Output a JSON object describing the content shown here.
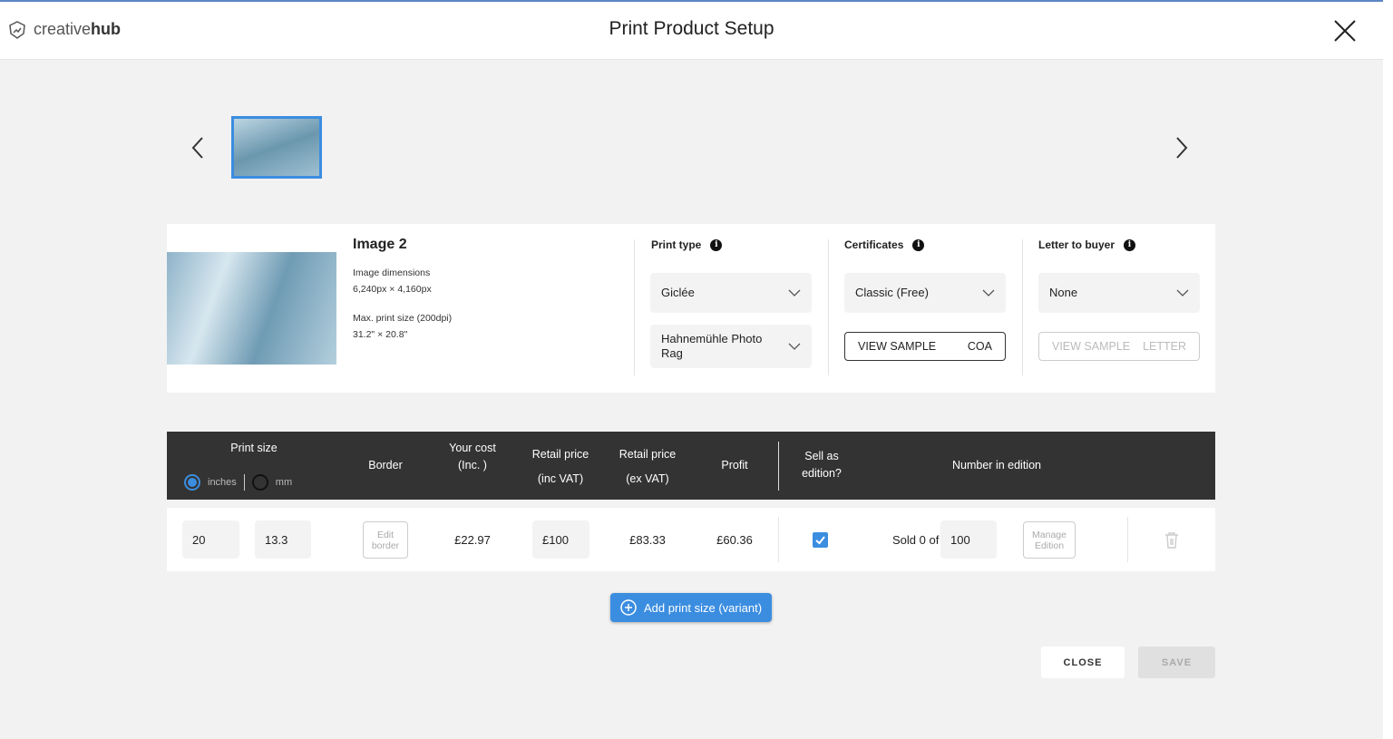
{
  "header": {
    "logo_light": "creative",
    "logo_bold": "hub",
    "title": "Print Product Setup"
  },
  "image": {
    "title": "Image 2",
    "dimensions_label": "Image dimensions",
    "dimensions_value": "6,240px × 4,160px",
    "max_print_label": "Max. print size (200dpi)",
    "max_print_value": "31.2\" × 20.8\""
  },
  "print_type": {
    "label": "Print type",
    "type_value": "Giclée",
    "paper_value": "Hahnemühle Photo Rag"
  },
  "certificates": {
    "label": "Certificates",
    "value": "Classic (Free)",
    "sample_left": "VIEW SAMPLE",
    "sample_right": "COA"
  },
  "letter": {
    "label": "Letter to buyer",
    "value": "None",
    "sample_left": "VIEW SAMPLE",
    "sample_right": "LETTER"
  },
  "table": {
    "headers": {
      "print_size": "Print size",
      "inches": "inches",
      "mm": "mm",
      "border": "Border",
      "your_cost": [
        "Your cost",
        "(Inc. )"
      ],
      "retail_inc": [
        "Retail price",
        "(inc VAT)"
      ],
      "retail_ex": [
        "Retail price",
        "(ex VAT)"
      ],
      "profit": "Profit",
      "sell_edition": [
        "Sell as",
        "edition?"
      ],
      "number_in_edition": "Number in edition"
    },
    "unit_selected": "inches",
    "row": {
      "width": "20",
      "height": "13.3",
      "edit_border": [
        "Edit",
        "border"
      ],
      "your_cost": "£22.97",
      "retail_inc": "£100",
      "retail_ex": "£83.33",
      "profit": "£60.36",
      "sell_as_edition": true,
      "sold_text": "Sold 0 of",
      "edition_size": "100",
      "manage_edition": [
        "Manage",
        "Edition"
      ]
    }
  },
  "add_variant_label": "Add print size (variant)",
  "footer": {
    "close_label": "CLOSE",
    "save_label": "SAVE"
  },
  "colors": {
    "accent": "#3b8de0",
    "table_header": "#333333"
  }
}
